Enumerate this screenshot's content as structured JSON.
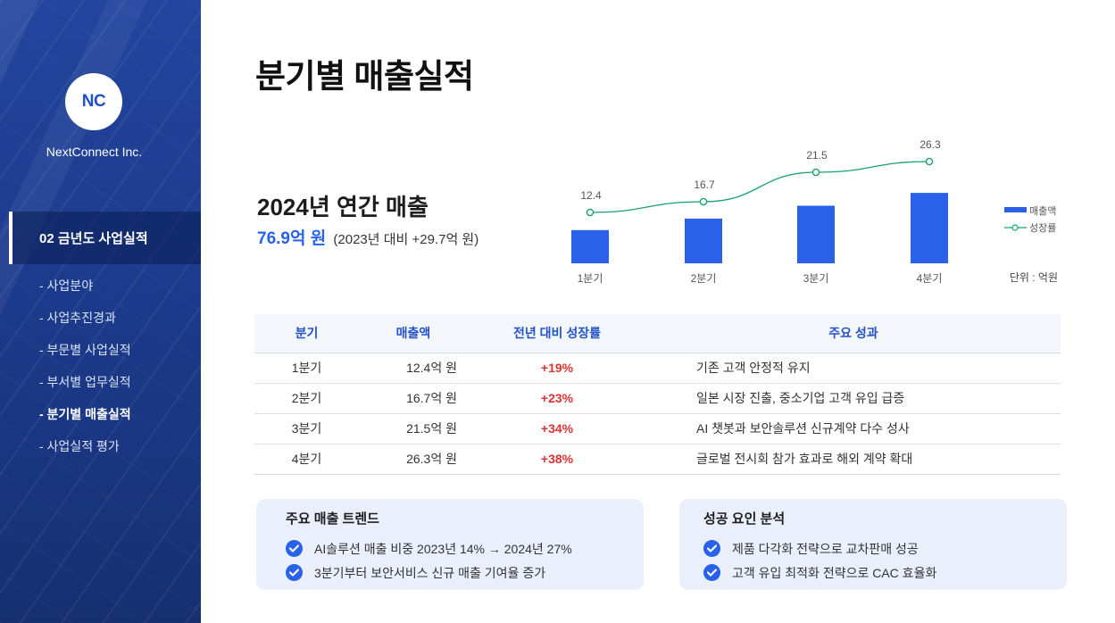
{
  "sidebar": {
    "logo": "NC",
    "company": "NextConnect Inc.",
    "section": "02 금년도 사업실적",
    "items": [
      {
        "label": "- 사업분야",
        "active": false
      },
      {
        "label": "- 사업추진경과",
        "active": false
      },
      {
        "label": "- 부문별 사업실적",
        "active": false
      },
      {
        "label": "- 부서별 업무실적",
        "active": false
      },
      {
        "label": "- 분기별 매출실적",
        "active": true
      },
      {
        "label": "- 사업실적 평가",
        "active": false
      }
    ]
  },
  "header": {
    "title": "분기별 매출실적"
  },
  "annual": {
    "title": "2024년 연간 매출",
    "value": "76.9억 원",
    "compare": "(2023년 대비 +29.7억 원)"
  },
  "chart_data": {
    "type": "bar",
    "categories": [
      "1분기",
      "2분기",
      "3분기",
      "4분기"
    ],
    "series": [
      {
        "name": "매출액",
        "type": "bar",
        "values": [
          12.4,
          16.7,
          21.5,
          26.3
        ]
      },
      {
        "name": "성장률",
        "type": "line",
        "values": [
          19,
          23,
          34,
          38
        ]
      }
    ],
    "value_labels": [
      "12.4",
      "16.7",
      "21.5",
      "26.3"
    ],
    "unit": "단위 : 억원",
    "legend": [
      "매출액",
      "성장률"
    ],
    "legend_position": "right",
    "colors": {
      "bar": "#2962e8",
      "line": "#16a36b"
    }
  },
  "table": {
    "headers": [
      "분기",
      "매출액",
      "전년 대비 성장률",
      "주요 성과"
    ],
    "rows": [
      [
        "1분기",
        "12.4억 원",
        "+19%",
        "기존 고객 안정적 유지"
      ],
      [
        "2분기",
        "16.7억 원",
        "+23%",
        "일본 시장 진출, 중소기업 고객 유입 급증"
      ],
      [
        "3분기",
        "21.5억 원",
        "+34%",
        "AI 챗봇과 보안솔루션 신규계약 다수 성사"
      ],
      [
        "4분기",
        "26.3억 원",
        "+38%",
        "글로벌 전시회 참가 효과로 해외 계약 확대"
      ]
    ]
  },
  "cards": [
    {
      "title": "주요 매출 트렌드",
      "items": [
        "AI솔루션 매출 비중 2023년 14% → 2024년 27%",
        "3분기부터 보안서비스 신규 매출 기여율 증가"
      ]
    },
    {
      "title": "성공 요인 분석",
      "items": [
        "제품 다각화 전략으로 교차판매 성공",
        "고객 유입 최적화 전략으로 CAC 효율화"
      ]
    }
  ],
  "colors": {
    "accent": "#2962e8",
    "sidebar": "#1d3c8e",
    "positive": "#e03131",
    "line": "#16a36b"
  }
}
